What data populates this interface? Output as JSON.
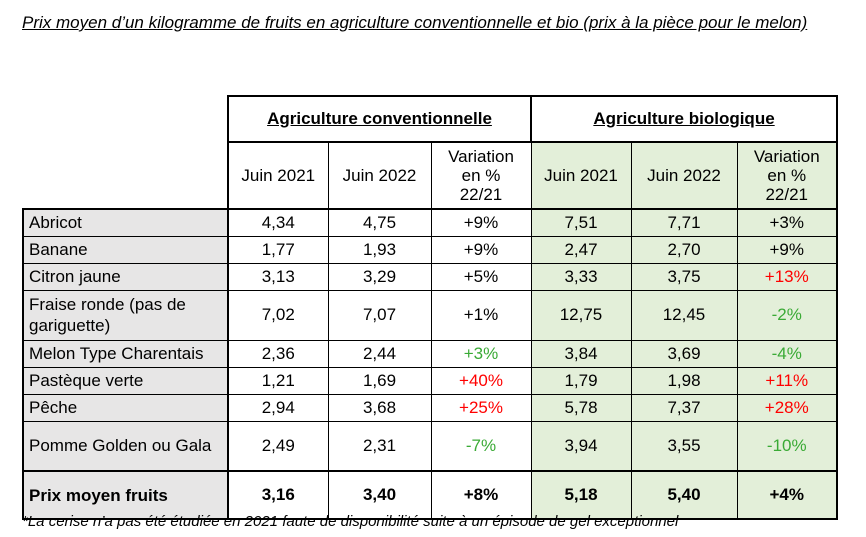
{
  "title": "Prix moyen d’un kilogramme de fruits en agriculture conventionnelle et bio (prix à la pièce pour le melon)",
  "groups": {
    "conventional": "Agriculture conventionnelle",
    "organic": "Agriculture biologique"
  },
  "columns": {
    "june2021": "Juin 2021",
    "june2022": "Juin 2022",
    "variation": [
      "Variation",
      "en %",
      "22/21"
    ]
  },
  "rows": [
    {
      "fruit": "Abricot",
      "c21": "4,34",
      "c22": "4,75",
      "cvar": "+9%",
      "b21": "7,51",
      "b22": "7,71",
      "bvar": "+3%"
    },
    {
      "fruit": "Banane",
      "c21": "1,77",
      "c22": "1,93",
      "cvar": "+9%",
      "b21": "2,47",
      "b22": "2,70",
      "bvar": "+9%"
    },
    {
      "fruit": "Citron jaune",
      "c21": "3,13",
      "c22": "3,29",
      "cvar": "+5%",
      "b21": "3,33",
      "b22": "3,75",
      "bvar": "+13%"
    },
    {
      "fruit": "Fraise ronde (pas de gariguette)",
      "c21": "7,02",
      "c22": "7,07",
      "cvar": "+1%",
      "b21": "12,75",
      "b22": "12,45",
      "bvar": "-2%"
    },
    {
      "fruit": "Melon Type Charentais",
      "c21": "2,36",
      "c22": "2,44",
      "cvar": "+3%",
      "b21": "3,84",
      "b22": "3,69",
      "bvar": "-4%"
    },
    {
      "fruit": "Pastèque verte",
      "c21": "1,21",
      "c22": "1,69",
      "cvar": "+40%",
      "b21": "1,79",
      "b22": "1,98",
      "bvar": "+11%"
    },
    {
      "fruit": "Pêche",
      "c21": "2,94",
      "c22": "3,68",
      "cvar": "+25%",
      "b21": "5,78",
      "b22": "7,37",
      "bvar": "+28%"
    },
    {
      "fruit": "Pomme Golden ou Gala",
      "c21": "2,49",
      "c22": "2,31",
      "cvar": "-7%",
      "b21": "3,94",
      "b22": "3,55",
      "bvar": "-10%"
    }
  ],
  "total": {
    "fruit": "Prix moyen fruits",
    "c21": "3,16",
    "c22": "3,40",
    "cvar": "+8%",
    "b21": "5,18",
    "b22": "5,40",
    "bvar": "+4%"
  },
  "footnote": "*La cerise n’a pas été étudiée en 2021 faute de disponibilité suite à un épisode de gel exceptionnel",
  "colors": {
    "increase_highlight": "#ff0000",
    "decrease_highlight": "#3aaa35",
    "organic_bg": "#e3efd9",
    "label_bg": "#e7e6e6"
  }
}
